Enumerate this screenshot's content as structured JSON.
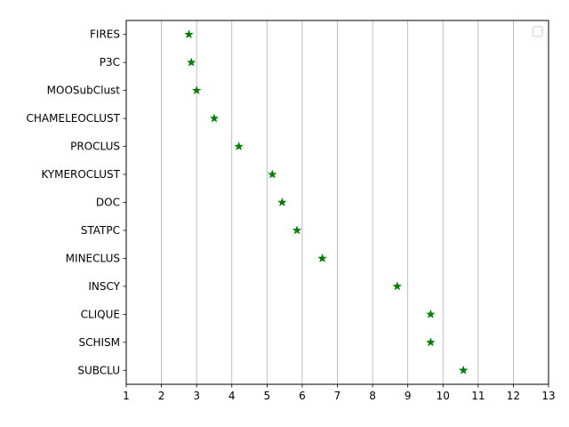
{
  "chart_data": {
    "type": "scatter",
    "title": "",
    "xlabel": "",
    "ylabel": "",
    "categories": [
      "FIRES",
      "P3C",
      "MOOSubClust",
      "CHAMELEOCLUST",
      "PROCLUS",
      "KYMEROCLUST",
      "DOC",
      "STATPC",
      "MINECLUS",
      "INSCY",
      "CLIQUE",
      "SCHISM",
      "SUBCLU"
    ],
    "values": [
      2.78,
      2.85,
      3.0,
      3.5,
      4.2,
      5.15,
      5.43,
      5.85,
      6.57,
      8.7,
      9.65,
      9.65,
      10.58
    ],
    "xlim": [
      1,
      13
    ],
    "xticks": [
      "1",
      "2",
      "3",
      "4",
      "5",
      "6",
      "7",
      "8",
      "9",
      "10",
      "11",
      "12",
      "13"
    ],
    "grid": "vertical",
    "legend": "top-right, empty",
    "marker": "star",
    "color": "#008000"
  }
}
